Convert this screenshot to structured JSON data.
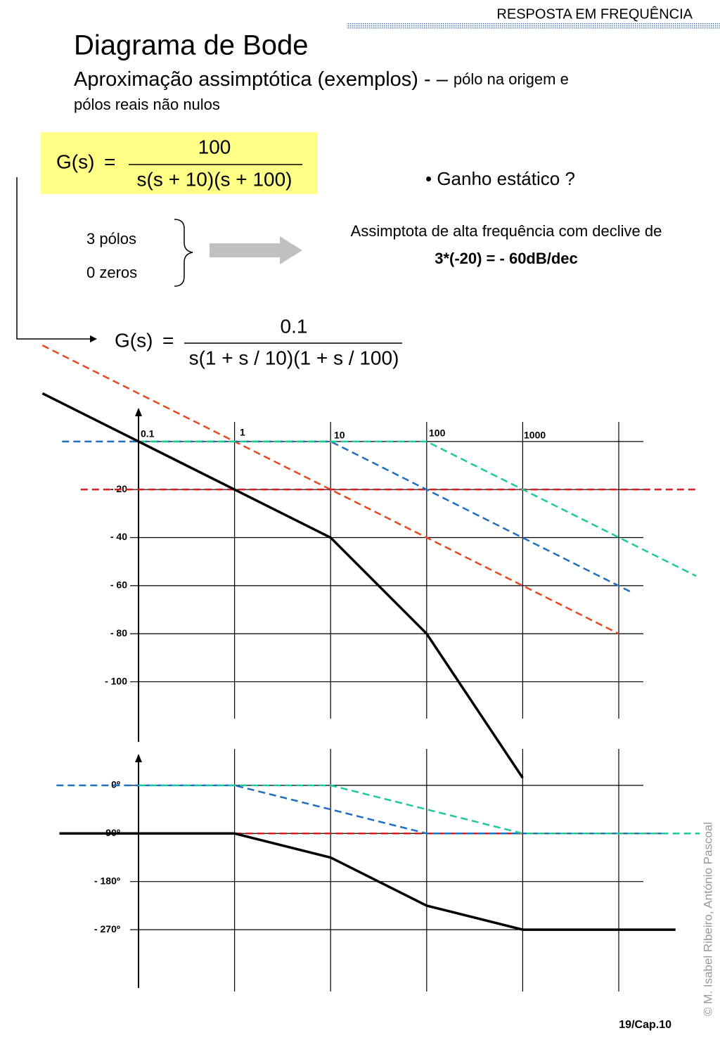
{
  "header": "RESPOSTA EM FREQUÊNCIA",
  "title": "Diagrama de Bode",
  "subtitle": "Aproximação assimptótica (exemplos) - –",
  "subtitle_small": "pólo na origem e",
  "subtitle_small_2": "pólos reais não nulos",
  "transfer_function_1": {
    "lhs": "G(s)",
    "eq": "=",
    "numerator": "100",
    "denominator": "s(s + 10)(s + 100)"
  },
  "question": "• Ganho estático ?",
  "poles": "3 pólos",
  "zeros": "0 zeros",
  "note": {
    "line1": "Assimptota de alta frequência com declive de",
    "line2": "3*(-20) = - 60dB/dec"
  },
  "transfer_function_2": {
    "lhs": "G(s)",
    "eq": "=",
    "numerator": "0.1",
    "denominator": "s(1 + s / 10)(1 + s / 100)"
  },
  "chart_data": [
    {
      "type": "line",
      "xscale": "log",
      "xtick_labels": true,
      "xlim": [
        0.1,
        10000
      ],
      "ylim": [
        -125,
        14
      ],
      "xticks": [
        0.1,
        1,
        10,
        100,
        1000
      ],
      "yticks": [
        {
          "value": -20,
          "label": "- 20"
        },
        {
          "value": -40,
          "label": "- 40"
        },
        {
          "value": -60,
          "label": "- 60"
        },
        {
          "value": -80,
          "label": "- 80"
        },
        {
          "value": -100,
          "label": "- 100"
        }
      ],
      "series": [
        {
          "color": "#e8481c",
          "dashed": true,
          "x": [
            0.01,
            10000
          ],
          "values": [
            40,
            -80
          ]
        },
        {
          "color": "#d42020",
          "dashed": true,
          "x": [
            0.025,
            65000
          ],
          "values": [
            -20,
            -20
          ]
        },
        {
          "color": "#1f6fc0",
          "dashed": true,
          "x": [
            0.016,
            10,
            14000
          ],
          "values": [
            0,
            0,
            -63
          ]
        },
        {
          "color": "#1ec99a",
          "dashed": true,
          "x": [
            0.1,
            100,
            64000
          ],
          "values": [
            0,
            0,
            -56
          ]
        },
        {
          "color": "#000000",
          "dashed": false,
          "x": [
            0.01,
            0.1,
            1,
            10,
            100,
            1000
          ],
          "values": [
            20,
            0,
            -20,
            -40,
            -80,
            -140
          ]
        }
      ]
    },
    {
      "type": "line",
      "xscale": "log",
      "xtick_labels": false,
      "xlim": [
        0.1,
        10000
      ],
      "ylim": [
        -379,
        59
      ],
      "xticks": [
        0.1,
        1,
        10,
        100,
        1000
      ],
      "yticks": [
        {
          "value": 0,
          "label": "0º"
        },
        {
          "value": -90,
          "label": "- 90º"
        },
        {
          "value": -180,
          "label": "- 180º"
        },
        {
          "value": -270,
          "label": "- 270º"
        }
      ],
      "series": [
        {
          "color": "#d42020",
          "dashed": true,
          "x": [
            1,
            30000
          ],
          "values": [
            -90,
            -90
          ]
        },
        {
          "color": "#1f6fc0",
          "dashed": true,
          "x": [
            0.014,
            1,
            100,
            30000
          ],
          "values": [
            0,
            0,
            -90,
            -90
          ]
        },
        {
          "color": "#1ec99a",
          "dashed": true,
          "x": [
            0.1,
            10,
            1000,
            70000
          ],
          "values": [
            0,
            0,
            -90,
            -90
          ]
        },
        {
          "color": "#000000",
          "dashed": false,
          "x": [
            0.015,
            1,
            10,
            100,
            1000,
            39000
          ],
          "values": [
            -90,
            -90,
            -135,
            -225,
            -270,
            -270
          ]
        }
      ]
    }
  ],
  "footer": "19/Cap.10",
  "copyright": "© M. Isabel Ribeiro, António Pascoal"
}
